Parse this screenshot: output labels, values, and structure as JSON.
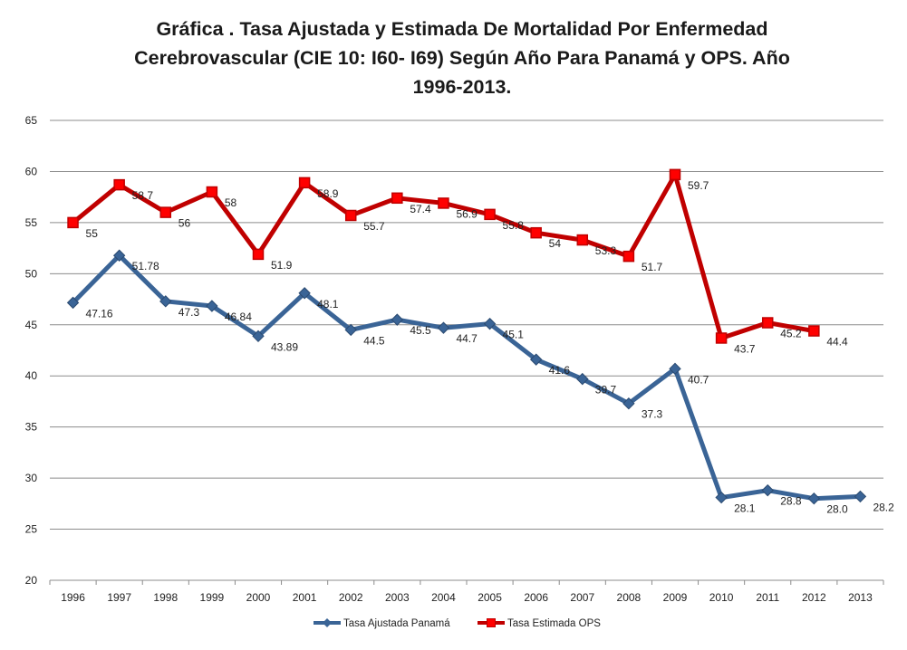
{
  "chart_data": {
    "type": "line",
    "title_lines": [
      "Gráfica . Tasa Ajustada y Estimada De Mortalidad Por Enfermedad",
      "Cerebrovascular (CIE 10: I60- I69) Según Año Para Panamá y OPS. Año",
      "1996-2013."
    ],
    "categories": [
      "1996",
      "1997",
      "1998",
      "1999",
      "2000",
      "2001",
      "2002",
      "2003",
      "2004",
      "2005",
      "2006",
      "2007",
      "2008",
      "2009",
      "2010",
      "2011",
      "2012",
      "2013"
    ],
    "ylim": [
      20,
      65
    ],
    "yticks": [
      "20",
      "25",
      "30",
      "35",
      "40",
      "45",
      "50",
      "55",
      "60",
      "65"
    ],
    "grid": true,
    "legend_position": "bottom",
    "series": [
      {
        "name": "Tasa Ajustada Panamá",
        "color": "#3A6496",
        "marker": "diamond",
        "values": [
          47.16,
          51.78,
          47.3,
          46.84,
          43.89,
          48.1,
          44.5,
          45.5,
          44.7,
          45.1,
          41.6,
          39.7,
          37.3,
          40.7,
          28.1,
          28.8,
          28.0,
          28.2
        ],
        "labels": [
          "47.16",
          "51.78",
          "47.3",
          "46.84",
          "43.89",
          "48.1",
          "44.5",
          "45.5",
          "44.7",
          "45.1",
          "41.6",
          "39.7",
          "37.3",
          "40.7",
          "28.1",
          "28.8",
          "28.0",
          "28.2"
        ]
      },
      {
        "name": "Tasa Estimada OPS",
        "color": "#C00000",
        "marker_fill": "#FF0000",
        "marker": "square",
        "values": [
          55,
          58.7,
          56,
          58,
          51.9,
          58.9,
          55.7,
          57.4,
          56.9,
          55.8,
          54,
          53.3,
          51.7,
          59.7,
          43.7,
          45.2,
          44.4,
          null
        ],
        "labels": [
          "55",
          "58.7",
          "56",
          "58",
          "51.9",
          "58.9",
          "55.7",
          "57.4",
          "56.9",
          "55.8",
          "54",
          "53.3",
          "51.7",
          "59.7",
          "43.7",
          "45.2",
          "44.4",
          ""
        ]
      }
    ]
  }
}
